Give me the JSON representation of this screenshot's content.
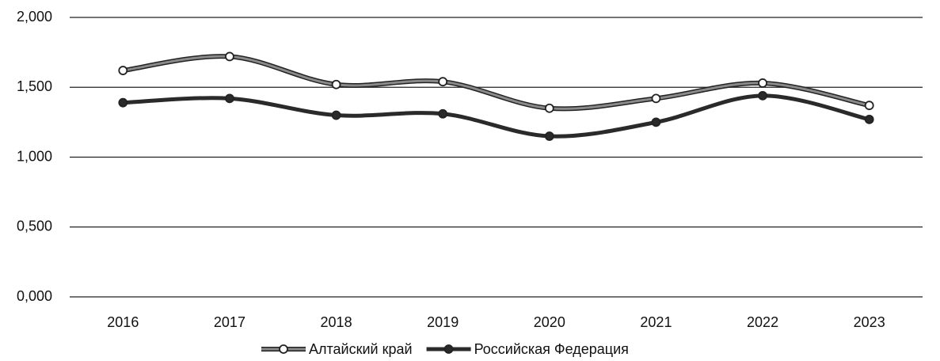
{
  "chart_data": {
    "type": "line",
    "categories": [
      "2016",
      "2017",
      "2018",
      "2019",
      "2020",
      "2021",
      "2022",
      "2023"
    ],
    "series": [
      {
        "name": "Алтайский край",
        "color": "#8a8a8a",
        "marker": "hollow",
        "values": [
          1.62,
          1.72,
          1.52,
          1.54,
          1.35,
          1.42,
          1.53,
          1.37
        ]
      },
      {
        "name": "Российская Федерация",
        "color": "#2a2a2a",
        "marker": "filled",
        "values": [
          1.39,
          1.42,
          1.3,
          1.31,
          1.15,
          1.25,
          1.44,
          1.27
        ]
      }
    ],
    "ylim": [
      0,
      2
    ],
    "yticks": [
      {
        "value": 0,
        "label": "0,000"
      },
      {
        "value": 0.5,
        "label": "0,500"
      },
      {
        "value": 1,
        "label": "1,000"
      },
      {
        "value": 1.5,
        "label": "1,500"
      },
      {
        "value": 2,
        "label": "2,000"
      }
    ],
    "grid": true,
    "smooth": true,
    "legend": "bottom"
  }
}
